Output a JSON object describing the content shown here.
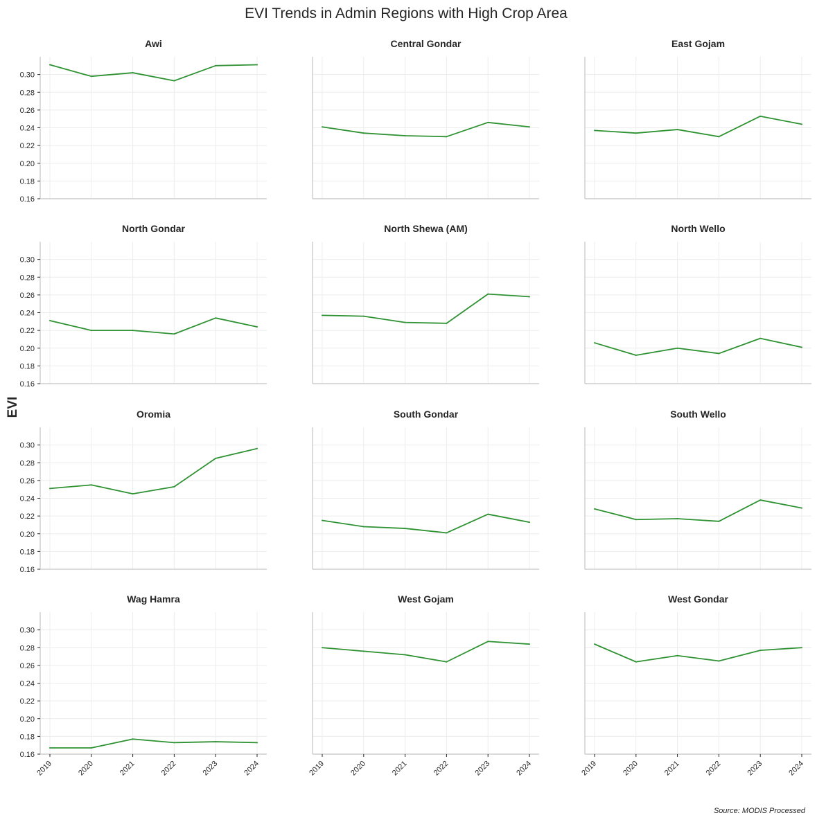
{
  "figure": {
    "title": "EVI Trends in Admin Regions with High Crop Area",
    "ylabel": "EVI",
    "source": "Source: MODIS Processed"
  },
  "colors": {
    "line": "#2e9232",
    "grid": "#ececec",
    "axis": "#c4c4c4",
    "tick": "#262626"
  },
  "chart_data": {
    "type": "line",
    "layout": "small-multiples 4x3, shared axes",
    "x": [
      "2019",
      "2020",
      "2021",
      "2022",
      "2023",
      "2024"
    ],
    "yticks": [
      "0.16",
      "0.18",
      "0.20",
      "0.22",
      "0.24",
      "0.26",
      "0.28",
      "0.30"
    ],
    "ylim": [
      0.16,
      0.32
    ],
    "grid": true,
    "panels": [
      {
        "title": "Awi",
        "values": [
          0.311,
          0.298,
          0.302,
          0.293,
          0.31,
          0.311
        ]
      },
      {
        "title": "Central Gondar",
        "values": [
          0.241,
          0.234,
          0.231,
          0.23,
          0.246,
          0.241
        ]
      },
      {
        "title": "East Gojam",
        "values": [
          0.237,
          0.234,
          0.238,
          0.23,
          0.253,
          0.244
        ]
      },
      {
        "title": "North Gondar",
        "values": [
          0.231,
          0.22,
          0.22,
          0.216,
          0.234,
          0.224
        ]
      },
      {
        "title": "North Shewa (AM)",
        "values": [
          0.237,
          0.236,
          0.229,
          0.228,
          0.261,
          0.258
        ]
      },
      {
        "title": "North Wello",
        "values": [
          0.206,
          0.192,
          0.2,
          0.194,
          0.211,
          0.201
        ]
      },
      {
        "title": "Oromia",
        "values": [
          0.251,
          0.255,
          0.245,
          0.253,
          0.285,
          0.296
        ]
      },
      {
        "title": "South Gondar",
        "values": [
          0.215,
          0.208,
          0.206,
          0.201,
          0.222,
          0.213
        ]
      },
      {
        "title": "South Wello",
        "values": [
          0.228,
          0.216,
          0.217,
          0.214,
          0.238,
          0.229
        ]
      },
      {
        "title": "Wag Hamra",
        "values": [
          0.167,
          0.167,
          0.177,
          0.173,
          0.174,
          0.173
        ]
      },
      {
        "title": "West Gojam",
        "values": [
          0.28,
          0.276,
          0.272,
          0.264,
          0.287,
          0.284
        ]
      },
      {
        "title": "West Gondar",
        "values": [
          0.284,
          0.264,
          0.271,
          0.265,
          0.277,
          0.28
        ]
      }
    ]
  }
}
